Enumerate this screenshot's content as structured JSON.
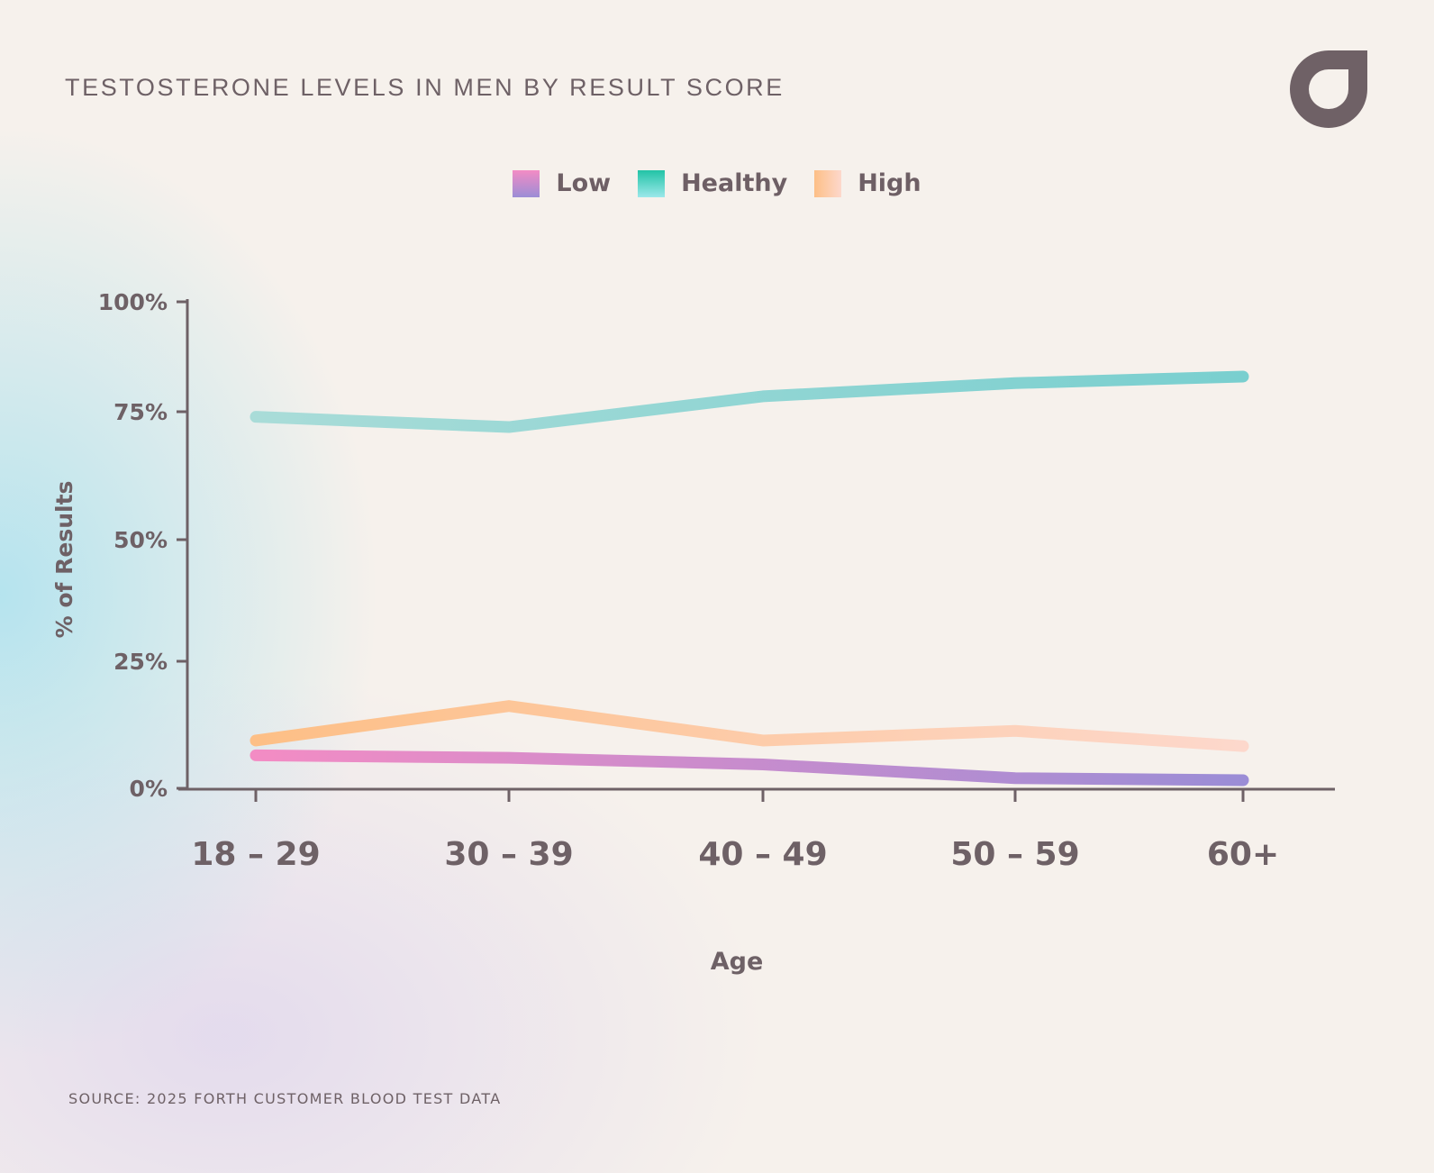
{
  "title": "TESTOSTERONE LEVELS IN MEN BY RESULT SCORE",
  "source": "SOURCE: 2025 FORTH CUSTOMER BLOOD TEST DATA",
  "logo_icon": "forth-drop-logo",
  "chart_data": {
    "type": "line",
    "xlabel": "Age",
    "ylabel": "% of Results",
    "categories": [
      "18 – 29",
      "30 – 39",
      "40 – 49",
      "50 – 59",
      "60+"
    ],
    "yticks": [
      0,
      25,
      50,
      75,
      100
    ],
    "ytick_labels": [
      "0%",
      "25%",
      "50%",
      "75%",
      "100%"
    ],
    "ylim": [
      0,
      100
    ],
    "grid": false,
    "legend_placement": "top",
    "series": [
      {
        "name": "Low",
        "values": [
          6.5,
          6,
          4.7,
          2,
          1.6
        ],
        "colors": [
          "#f38cc4",
          "#9b8dd6"
        ]
      },
      {
        "name": "Healthy",
        "values": [
          74,
          72,
          78.5,
          81.5,
          83
        ],
        "colors": [
          "#a9dcd8",
          "#79cfcf"
        ]
      },
      {
        "name": "High",
        "values": [
          9.4,
          16.2,
          9.4,
          11.3,
          8.3
        ],
        "colors": [
          "#fdbf86",
          "#fdd8cc"
        ]
      }
    ]
  }
}
